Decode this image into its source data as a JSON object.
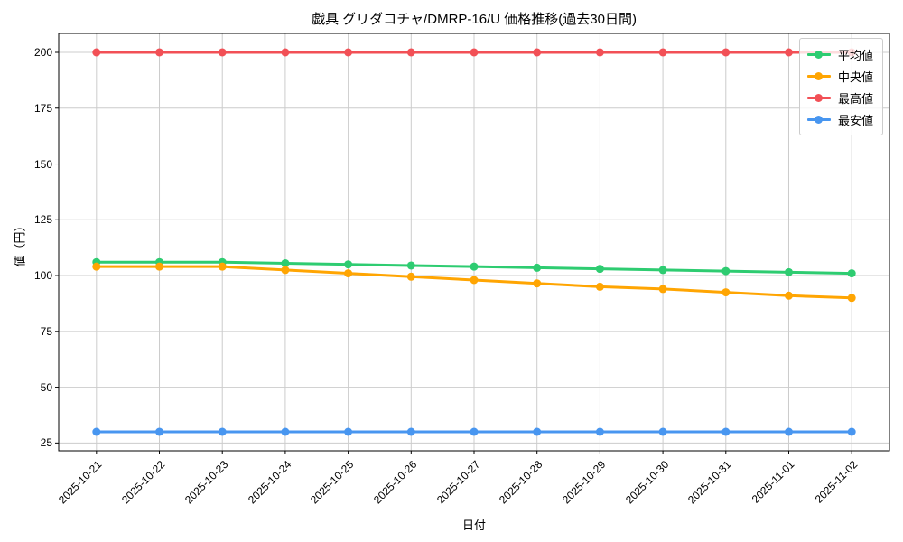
{
  "chart_data": {
    "type": "line",
    "title": "戯具 グリダコチャ/DMRP-16/U 価格推移(過去30日間)",
    "xlabel": "日付",
    "ylabel": "値（円）",
    "categories": [
      "2025-10-21",
      "2025-10-22",
      "2025-10-23",
      "2025-10-24",
      "2025-10-25",
      "2025-10-26",
      "2025-10-27",
      "2025-10-28",
      "2025-10-29",
      "2025-10-30",
      "2025-10-31",
      "2025-11-01",
      "2025-11-02"
    ],
    "series": [
      {
        "name": "平均値",
        "color": "#2ecc71",
        "values": [
          106,
          106,
          106,
          105.5,
          105,
          104.5,
          104,
          103.5,
          103,
          102.5,
          102,
          101.5,
          101
        ]
      },
      {
        "name": "中央値",
        "color": "#ffa502",
        "values": [
          104,
          104,
          104,
          102.5,
          101,
          99.5,
          98,
          96.5,
          95,
          94,
          92.5,
          91,
          90
        ]
      },
      {
        "name": "最高値",
        "color": "#f25056",
        "values": [
          200,
          200,
          200,
          200,
          200,
          200,
          200,
          200,
          200,
          200,
          200,
          200,
          200
        ]
      },
      {
        "name": "最安値",
        "color": "#4896f0",
        "values": [
          30,
          30,
          30,
          30,
          30,
          30,
          30,
          30,
          30,
          30,
          30,
          30,
          30
        ]
      }
    ],
    "ylim": [
      21.5,
      208.5
    ],
    "yticks": [
      25,
      50,
      75,
      100,
      125,
      150,
      175,
      200
    ],
    "grid": true,
    "grid_color": "#cccccc",
    "spine_color": "#000000",
    "background": "#ffffff",
    "legend_position": "upper-right"
  }
}
